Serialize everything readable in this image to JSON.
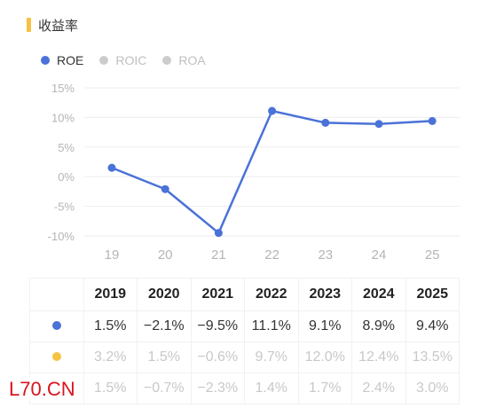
{
  "section": {
    "title": "收益率",
    "accent": "#f5c242"
  },
  "legend": [
    {
      "label": "ROE",
      "color": "#4a72d8",
      "active": true
    },
    {
      "label": "ROIC",
      "color": "#cccccc",
      "active": false
    },
    {
      "label": "ROA",
      "color": "#cccccc",
      "active": false
    }
  ],
  "chart_data": {
    "type": "line",
    "x": [
      "19",
      "20",
      "21",
      "22",
      "23",
      "24",
      "25"
    ],
    "series": [
      {
        "name": "ROE",
        "values": [
          1.5,
          -2.1,
          -9.5,
          11.1,
          9.1,
          8.9,
          9.4
        ],
        "color": "#4a72d8"
      }
    ],
    "yticks": [
      "15%",
      "10%",
      "5%",
      "0%",
      "-5%",
      "-10%"
    ],
    "ylim": [
      -10,
      15
    ],
    "grid": true
  },
  "table": {
    "headers": [
      "",
      "2019",
      "2020",
      "2021",
      "2022",
      "2023",
      "2024",
      "2025"
    ],
    "rows": [
      {
        "marker_color": "#4a72d8",
        "values": [
          "1.5%",
          "−2.1%",
          "−9.5%",
          "11.1%",
          "9.1%",
          "8.9%",
          "9.4%"
        ]
      },
      {
        "marker_color": "#f5c242",
        "values": [
          "3.2%",
          "1.5%",
          "−0.6%",
          "9.7%",
          "12.0%",
          "12.4%",
          "13.5%"
        ]
      },
      {
        "marker_color": "#3cc6c6",
        "values": [
          "1.5%",
          "−0.7%",
          "−2.3%",
          "1.4%",
          "1.7%",
          "2.4%",
          "3.0%"
        ]
      }
    ]
  },
  "watermark": "L70.CN"
}
